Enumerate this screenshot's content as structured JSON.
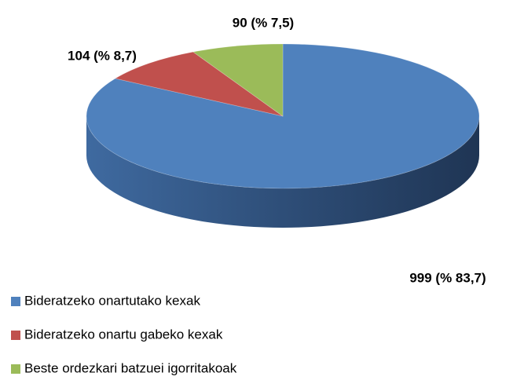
{
  "chart_data": {
    "type": "pie3d",
    "categories": [
      "Bideratzeko onartutako kexak",
      "Bideratzeko onartu gabeko kexak",
      "Beste ordezkari batzuei igorritakoak"
    ],
    "values": [
      999,
      104,
      90
    ],
    "value_labels": [
      "999 (% 83,7)",
      "104 (% 8,7)",
      "90 (% 7,5)"
    ],
    "colors": [
      "#4f81bd",
      "#c0504d",
      "#9bbb59"
    ],
    "legend": "bottom-left"
  }
}
